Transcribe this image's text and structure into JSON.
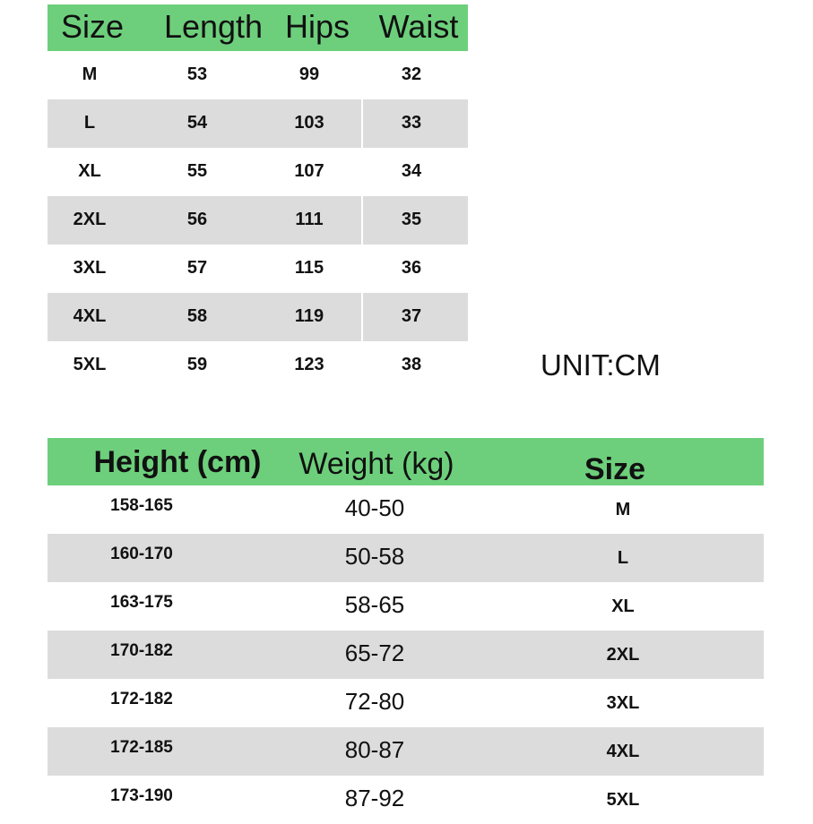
{
  "garment_table": {
    "headers": [
      "Size",
      "Length",
      "Hips",
      "Waist"
    ],
    "rows": [
      [
        "M",
        "53",
        "99",
        "32"
      ],
      [
        "L",
        "54",
        "103",
        "33"
      ],
      [
        "XL",
        "55",
        "107",
        "34"
      ],
      [
        "2XL",
        "56",
        "111",
        "35"
      ],
      [
        "3XL",
        "57",
        "115",
        "36"
      ],
      [
        "4XL",
        "58",
        "119",
        "37"
      ],
      [
        "5XL",
        "59",
        "123",
        "38"
      ]
    ]
  },
  "unit_label": "UNIT:CM",
  "fit_table": {
    "headers": [
      "Height (cm)",
      "Weight (kg)",
      "Size"
    ],
    "rows": [
      [
        "158-165",
        "40-50",
        "M"
      ],
      [
        "160-170",
        "50-58",
        "L"
      ],
      [
        "163-175",
        "58-65",
        "XL"
      ],
      [
        "170-182",
        "65-72",
        "2XL"
      ],
      [
        "172-182",
        "72-80",
        "3XL"
      ],
      [
        "172-185",
        "80-87",
        "4XL"
      ],
      [
        "173-190",
        "87-92",
        "5XL"
      ]
    ]
  },
  "colors": {
    "header_green": "#6dcf7b",
    "row_gray": "#dcdcdc"
  }
}
